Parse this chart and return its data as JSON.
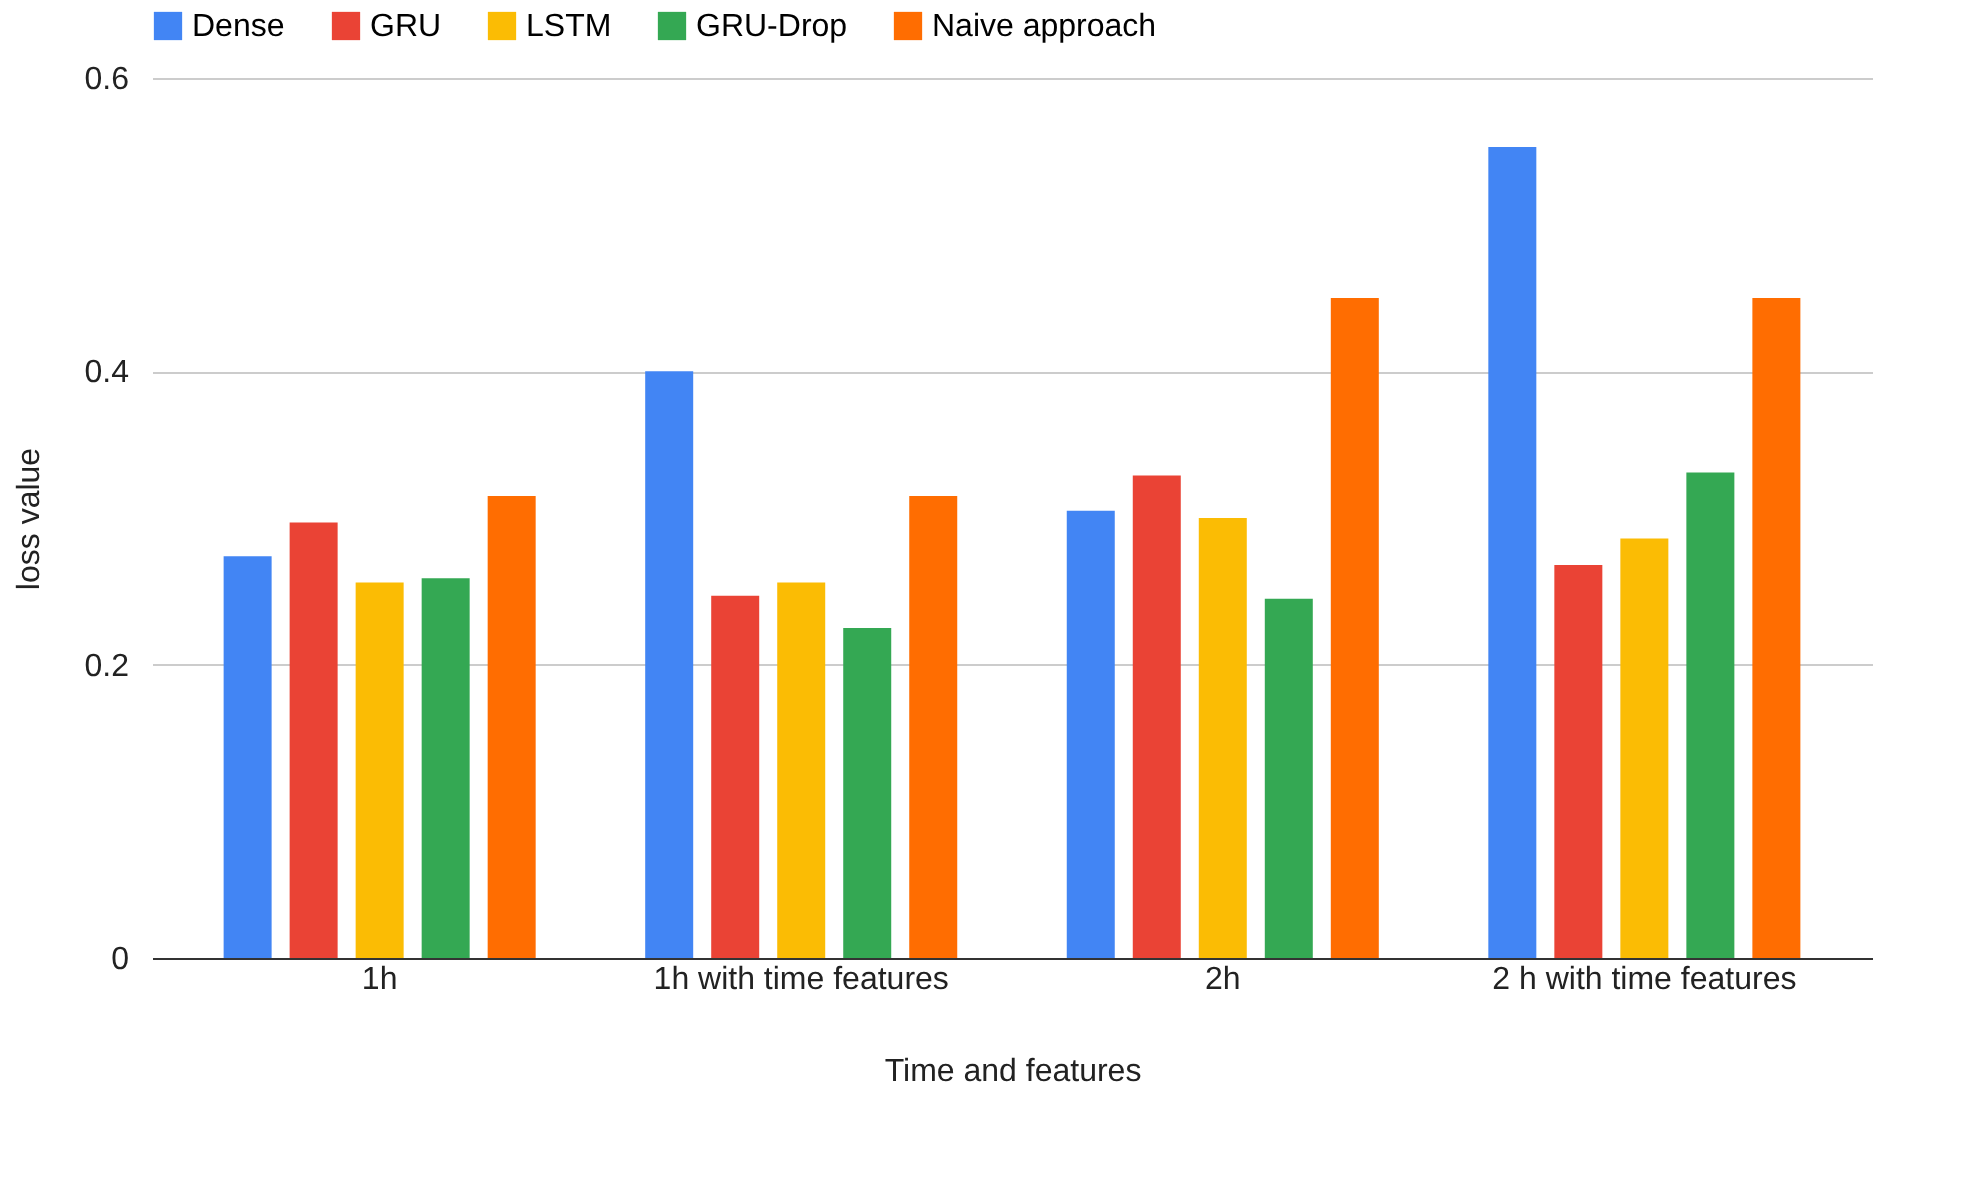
{
  "chart_data": {
    "type": "bar",
    "xlabel": "Time and features",
    "ylabel": "loss value",
    "categories": [
      "1h",
      "1h with time features",
      "2h",
      "2 h with time features"
    ],
    "series": [
      {
        "name": "Dense",
        "color": "#4285f4",
        "values": [
          0.274,
          0.4,
          0.305,
          0.553
        ]
      },
      {
        "name": "GRU",
        "color": "#ea4335",
        "values": [
          0.297,
          0.247,
          0.329,
          0.268
        ]
      },
      {
        "name": "LSTM",
        "color": "#fbbc04",
        "values": [
          0.256,
          0.256,
          0.3,
          0.286
        ]
      },
      {
        "name": "GRU-Drop",
        "color": "#34a853",
        "values": [
          0.259,
          0.225,
          0.245,
          0.331
        ]
      },
      {
        "name": "Naive approach",
        "color": "#ff6d01",
        "values": [
          0.315,
          0.315,
          0.45,
          0.45
        ]
      }
    ],
    "ylim": [
      0,
      0.6
    ],
    "yticks": [
      0,
      0.2,
      0.4,
      0.6
    ],
    "grid": "y",
    "legend": "top"
  }
}
